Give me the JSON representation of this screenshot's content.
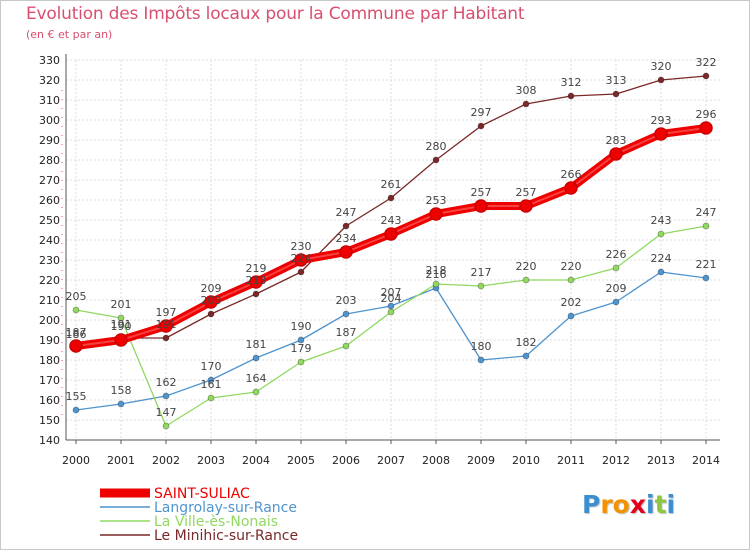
{
  "title": "Evolution des Impôts locaux pour la Commune par Habitant",
  "subtitle": "(en € et par an)",
  "logo": {
    "letters": [
      "P",
      "r",
      "o",
      "x",
      "i",
      "t",
      "i"
    ],
    "colors": [
      "#3a8fd1",
      "#f39200",
      "#f39200",
      "#e2001a",
      "#3a8fd1",
      "#8dc63f",
      "#3a8fd1"
    ]
  },
  "chart_data": {
    "type": "line",
    "title": "Evolution des Impôts locaux pour la Commune par Habitant",
    "subtitle": "(en € et par an)",
    "xlabel": "",
    "ylabel": "",
    "x": [
      "2000",
      "2001",
      "2002",
      "2003",
      "2004",
      "2005",
      "2006",
      "2007",
      "2008",
      "2009",
      "2010",
      "2011",
      "2012",
      "2013",
      "2014"
    ],
    "ylim": [
      140,
      330
    ],
    "yticks": [
      140,
      150,
      160,
      170,
      180,
      190,
      200,
      210,
      220,
      230,
      240,
      250,
      260,
      270,
      280,
      290,
      300,
      310,
      320,
      330
    ],
    "grid": true,
    "legend": "bottom-left",
    "series": [
      {
        "name": "SAINT-SULIAC",
        "color": "#ee0000",
        "values": [
          187,
          190,
          197,
          209,
          219,
          230,
          234,
          243,
          253,
          257,
          257,
          266,
          283,
          293,
          296
        ]
      },
      {
        "name": "Langrolay-sur-Rance",
        "color": "#4f94cd",
        "values": [
          155,
          158,
          162,
          170,
          181,
          190,
          203,
          207,
          216,
          180,
          182,
          202,
          209,
          224,
          221
        ]
      },
      {
        "name": "La Ville-ès-Nonais",
        "color": "#90d860",
        "values": [
          205,
          201,
          147,
          161,
          164,
          179,
          187,
          204,
          218,
          217,
          220,
          220,
          226,
          243,
          247
        ]
      },
      {
        "name": "Le Minihic-sur-Rance",
        "color": "#7a2828",
        "values": [
          186,
          191,
          191,
          203,
          213,
          224,
          247,
          261,
          280,
          297,
          308,
          312,
          313,
          320,
          322
        ]
      }
    ]
  }
}
